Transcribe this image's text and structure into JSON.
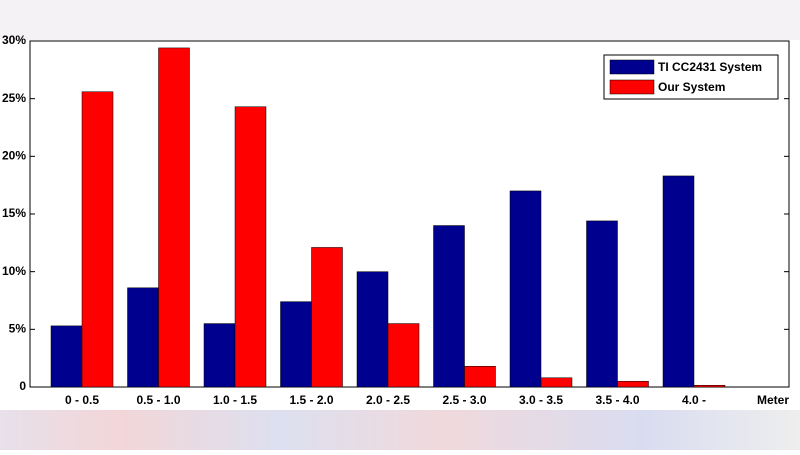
{
  "chart_data": {
    "type": "bar",
    "categories": [
      "0 - 0.5",
      "0.5 - 1.0",
      "1.0 - 1.5",
      "1.5 - 2.0",
      "2.0 - 2.5",
      "2.5 - 3.0",
      "3.0 - 3.5",
      "3.5 - 4.0",
      "4.0 -"
    ],
    "x_label": "Meter",
    "series": [
      {
        "name": "TI CC2431 System",
        "color": "#00008f",
        "values": [
          5.3,
          8.6,
          5.5,
          7.4,
          10.0,
          14.0,
          17.0,
          14.4,
          18.3
        ]
      },
      {
        "name": "Our System",
        "color": "#ff0000",
        "values": [
          25.6,
          29.4,
          24.3,
          12.1,
          5.5,
          1.8,
          0.8,
          0.5,
          0.15
        ]
      }
    ],
    "ylim": [
      0,
      30
    ],
    "yticks": [
      0,
      {
        "value": 5,
        "label": "5%"
      },
      {
        "value": 10,
        "label": "10%"
      },
      {
        "value": 15,
        "label": "15%"
      },
      {
        "value": 20,
        "label": "20%"
      },
      {
        "value": 25,
        "label": "25%"
      },
      {
        "value": 30,
        "label": "30%"
      }
    ],
    "legend": "upper right"
  }
}
